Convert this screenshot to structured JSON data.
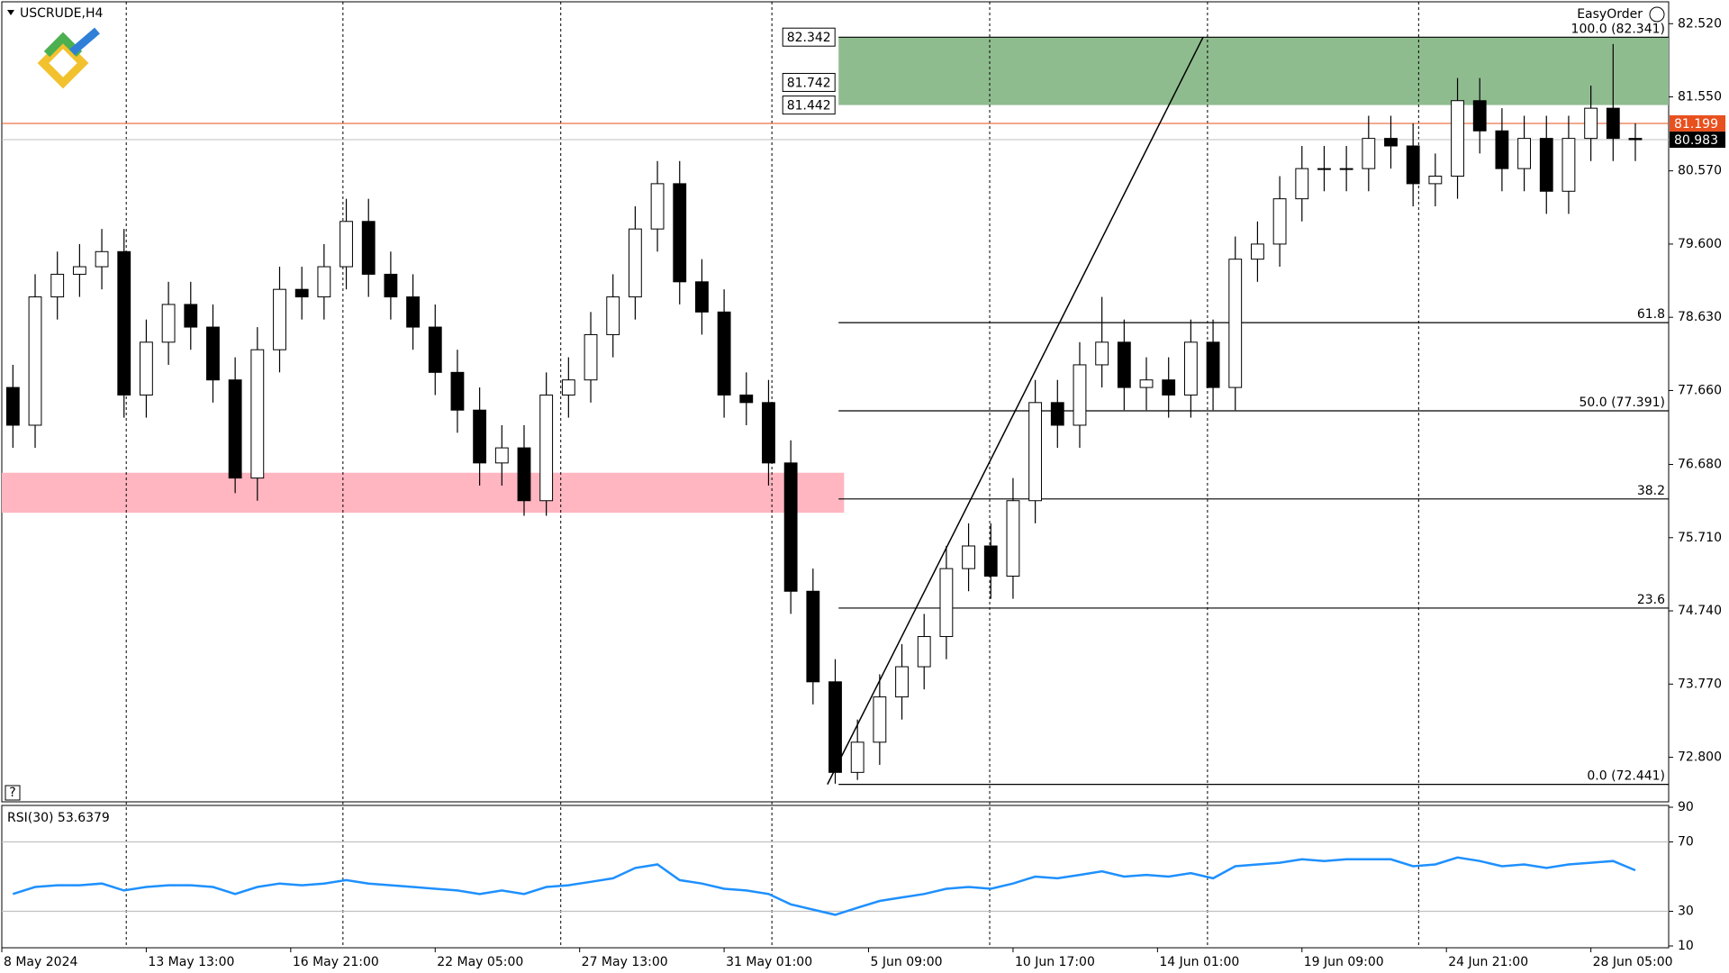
{
  "chart_data": [
    {
      "type": "candlestick",
      "title": "USCRUDE,H4",
      "xlim": [
        0,
        75
      ],
      "ylim": [
        72.21,
        82.81
      ],
      "yticks": [
        {
          "value": 82.52,
          "label": "82.520"
        },
        {
          "value": 81.55,
          "label": "81.550"
        },
        {
          "value": 80.57,
          "label": "80.570"
        },
        {
          "value": 79.6,
          "label": "79.600"
        },
        {
          "value": 78.63,
          "label": "78.630"
        },
        {
          "value": 77.66,
          "label": "77.660"
        },
        {
          "value": 76.68,
          "label": "76.680"
        },
        {
          "value": 75.71,
          "label": "75.710"
        },
        {
          "value": 74.74,
          "label": "74.740"
        },
        {
          "value": 73.77,
          "label": "73.770"
        },
        {
          "value": 72.8,
          "label": "72.800"
        }
      ],
      "xticks": [
        {
          "value": 0,
          "label": "8 May 2024"
        },
        {
          "value": 6.5,
          "label": "13 May 13:00"
        },
        {
          "value": 13,
          "label": "16 May 21:00"
        },
        {
          "value": 19.5,
          "label": "22 May 05:00"
        },
        {
          "value": 26,
          "label": "27 May 13:00"
        },
        {
          "value": 32.5,
          "label": "31 May 01:00"
        },
        {
          "value": 39,
          "label": "5 Jun 09:00"
        },
        {
          "value": 45.5,
          "label": "10 Jun 17:00"
        },
        {
          "value": 52,
          "label": "14 Jun 01:00"
        },
        {
          "value": 58.5,
          "label": "19 Jun 09:00"
        },
        {
          "value": 65,
          "label": "24 Jun 21:00"
        },
        {
          "value": 71.5,
          "label": "28 Jun 05:00"
        }
      ],
      "separators": [
        5.6,
        15.35,
        25.15,
        34.65,
        44.45,
        54.25,
        63.75
      ],
      "up_color": "#ffffff",
      "down_color": "#000000",
      "open": [
        77.7,
        77.2,
        78.9,
        79.2,
        79.3,
        79.5,
        77.6,
        78.3,
        78.8,
        78.5,
        77.8,
        76.5,
        78.2,
        79.0,
        78.9,
        79.3,
        79.9,
        79.2,
        78.9,
        78.5,
        77.9,
        77.4,
        76.7,
        76.9,
        76.2,
        77.6,
        77.8,
        78.4,
        78.9,
        79.8,
        80.4,
        79.1,
        78.7,
        77.6,
        77.5,
        76.7,
        75.0,
        73.8,
        72.6,
        73.0,
        73.6,
        74.0,
        74.4,
        75.3,
        75.6,
        75.2,
        76.2,
        77.5,
        77.2,
        78.0,
        78.3,
        77.7,
        77.8,
        77.6,
        78.3,
        77.7,
        79.4,
        79.6,
        80.2,
        80.6,
        80.6,
        80.6,
        81.0,
        80.9,
        80.4,
        80.5,
        81.5,
        81.1,
        80.6,
        81.0,
        80.3,
        81.0,
        81.4,
        81.0
      ],
      "high": [
        78.0,
        79.2,
        79.5,
        79.6,
        79.8,
        79.8,
        78.6,
        79.1,
        79.1,
        78.8,
        78.1,
        78.5,
        79.3,
        79.3,
        79.6,
        80.2,
        80.2,
        79.5,
        79.2,
        78.8,
        78.2,
        77.7,
        77.2,
        77.2,
        77.9,
        78.1,
        78.7,
        79.2,
        80.1,
        80.7,
        80.7,
        79.4,
        79.0,
        77.9,
        77.8,
        77.0,
        75.3,
        74.1,
        73.3,
        73.9,
        74.3,
        74.7,
        75.6,
        75.9,
        75.9,
        76.5,
        77.8,
        77.8,
        78.3,
        78.9,
        78.6,
        78.1,
        78.1,
        78.6,
        78.6,
        79.7,
        79.9,
        80.5,
        80.9,
        80.9,
        80.9,
        81.3,
        81.3,
        81.2,
        80.8,
        81.8,
        81.8,
        81.4,
        81.3,
        81.3,
        81.3,
        81.7,
        82.25,
        81.2
      ],
      "low": [
        76.9,
        76.9,
        78.6,
        78.9,
        79.0,
        77.3,
        77.3,
        78.0,
        78.2,
        77.5,
        76.3,
        76.2,
        77.9,
        78.6,
        78.6,
        79.0,
        78.9,
        78.6,
        78.2,
        77.6,
        77.1,
        76.4,
        76.4,
        76.0,
        76.0,
        77.3,
        77.5,
        78.1,
        78.6,
        79.5,
        78.8,
        78.4,
        77.3,
        77.2,
        76.4,
        74.7,
        73.5,
        72.45,
        72.5,
        72.7,
        73.3,
        73.7,
        74.1,
        75.0,
        74.9,
        74.9,
        75.9,
        76.9,
        76.9,
        77.7,
        77.4,
        77.4,
        77.3,
        77.3,
        77.4,
        77.4,
        79.1,
        79.3,
        79.9,
        80.3,
        80.3,
        80.3,
        80.6,
        80.1,
        80.1,
        80.2,
        80.8,
        80.3,
        80.3,
        80.0,
        80.0,
        80.7,
        80.7,
        80.7
      ],
      "close": [
        77.2,
        78.9,
        79.2,
        79.3,
        79.5,
        77.6,
        78.3,
        78.8,
        78.5,
        77.8,
        76.5,
        78.2,
        79.0,
        78.9,
        79.3,
        79.9,
        79.2,
        78.9,
        78.5,
        77.9,
        77.4,
        76.7,
        76.9,
        76.2,
        77.6,
        77.8,
        78.4,
        78.9,
        79.8,
        80.4,
        79.1,
        78.7,
        77.6,
        77.5,
        76.7,
        75.0,
        73.8,
        72.6,
        73.0,
        73.6,
        74.0,
        74.4,
        75.3,
        75.6,
        75.2,
        76.2,
        77.5,
        77.2,
        78.0,
        78.3,
        77.7,
        77.8,
        77.6,
        78.3,
        77.7,
        79.4,
        79.6,
        80.2,
        80.6,
        80.6,
        80.6,
        81.0,
        80.9,
        80.4,
        80.5,
        81.5,
        81.1,
        80.6,
        81.0,
        80.3,
        81.0,
        81.4,
        81.0,
        80.983
      ],
      "zones": [
        {
          "from": 81.442,
          "to": 82.342,
          "start": 37.65,
          "end": 75,
          "color": "#8fbc8f"
        },
        {
          "from": 76.04,
          "to": 76.57,
          "start": 0,
          "end": 37.9,
          "color": "#ffb6c1"
        }
      ],
      "price_tags": [
        {
          "value": 82.342,
          "label": "82.342"
        },
        {
          "value": 81.742,
          "label": "81.742"
        },
        {
          "value": 81.442,
          "label": "81.442"
        }
      ],
      "fibonacci": {
        "start": 37.65,
        "color": "#000000",
        "levels": [
          {
            "value": 82.341,
            "label": "100.0 (82.341)"
          },
          {
            "value": 78.559,
            "label": "61.8"
          },
          {
            "value": 77.391,
            "label": "50.0 (77.391)"
          },
          {
            "value": 76.223,
            "label": "38.2"
          },
          {
            "value": 74.777,
            "label": "23.6"
          },
          {
            "value": 72.441,
            "label": "0.0 (72.441)"
          }
        ]
      },
      "trendline": {
        "x": [
          37.15,
          54.05
        ],
        "y": [
          72.441,
          82.341
        ],
        "color": "#000000"
      },
      "price_lines": [
        {
          "value": 81.199,
          "color": "#e8501e",
          "tag_color": "#e8501e"
        },
        {
          "value": 80.983,
          "color": "#c0c0c0",
          "tag_color": "#000000"
        }
      ]
    },
    {
      "type": "line",
      "title": "RSI(30) 53.6379",
      "xlim": [
        0,
        75
      ],
      "ylim": [
        10,
        90
      ],
      "yticks": [
        90,
        70,
        30,
        10
      ],
      "levels": [
        70,
        30
      ],
      "level_color": "#c0c0c0",
      "color": "#1e90ff",
      "values": [
        40,
        44,
        45,
        45,
        46,
        42,
        44,
        45,
        45,
        44,
        40,
        44,
        46,
        45,
        46,
        48,
        46,
        45,
        44,
        43,
        42,
        40,
        42,
        40,
        44,
        45,
        47,
        49,
        55,
        57,
        48,
        46,
        43,
        42,
        40,
        34,
        31,
        28,
        32,
        36,
        38,
        40,
        43,
        44,
        43,
        46,
        50,
        49,
        51,
        53,
        50,
        51,
        50,
        52,
        49,
        56,
        57,
        58,
        60,
        59,
        60,
        60,
        60,
        56,
        57,
        61,
        59,
        56,
        57,
        55,
        57,
        58,
        59,
        53.6379
      ]
    }
  ],
  "ui": {
    "easy_order": "EasyOrder",
    "help": "?"
  }
}
